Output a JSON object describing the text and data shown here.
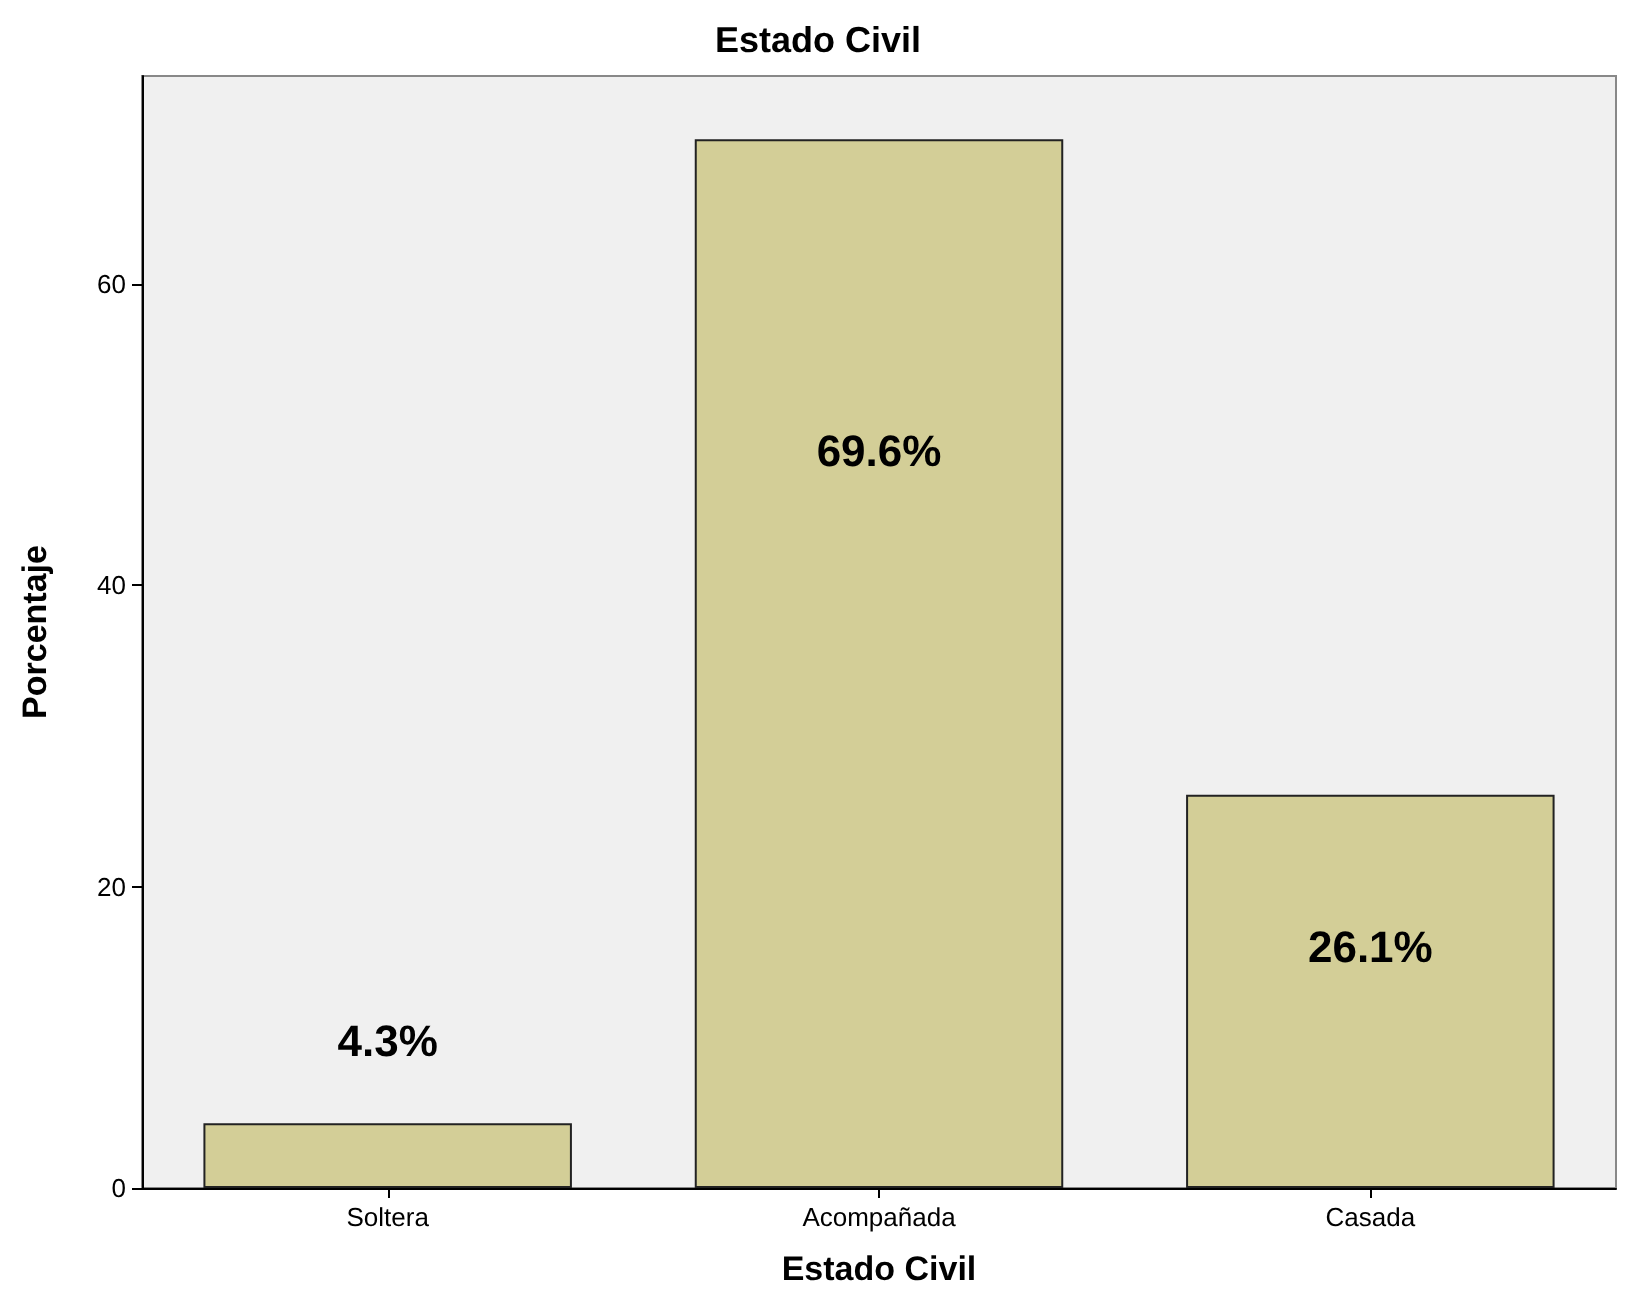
{
  "chart_data": {
    "type": "bar",
    "title": "Estado Civil",
    "xlabel": "Estado Civil",
    "ylabel": "Porcentaje",
    "categories": [
      "Soltera",
      "Acompañada",
      "Casada"
    ],
    "values": [
      4.3,
      69.6,
      26.1
    ],
    "value_labels": [
      "4.3%",
      "69.6%",
      "26.1%"
    ],
    "color": "#d3ce97",
    "ylim": [
      0,
      73.8
    ],
    "yticks": [
      0,
      20,
      40,
      60
    ],
    "grid": false
  }
}
